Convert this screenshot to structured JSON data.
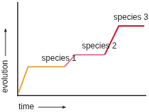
{
  "chart_data": {
    "type": "line",
    "x_label": "time",
    "y_label": "evolution",
    "xlim": [
      0,
      100
    ],
    "ylim": [
      0,
      100
    ],
    "xticks": [],
    "yticks": [],
    "tick_labels": false,
    "grid": false,
    "series": [
      {
        "name": "species 1",
        "color": "#e3a73c",
        "x": [
          0.5,
          8,
          36.5
        ],
        "values": [
          3,
          31,
          31
        ]
      },
      {
        "name": "species 2",
        "color": "#e0729a",
        "x": [
          36.5,
          45,
          68
        ],
        "values": [
          31,
          44,
          44
        ]
      },
      {
        "name": "species 3",
        "color": "#c8102e",
        "x": [
          68,
          79,
          99
        ],
        "values": [
          44,
          75,
          75
        ]
      }
    ]
  }
}
